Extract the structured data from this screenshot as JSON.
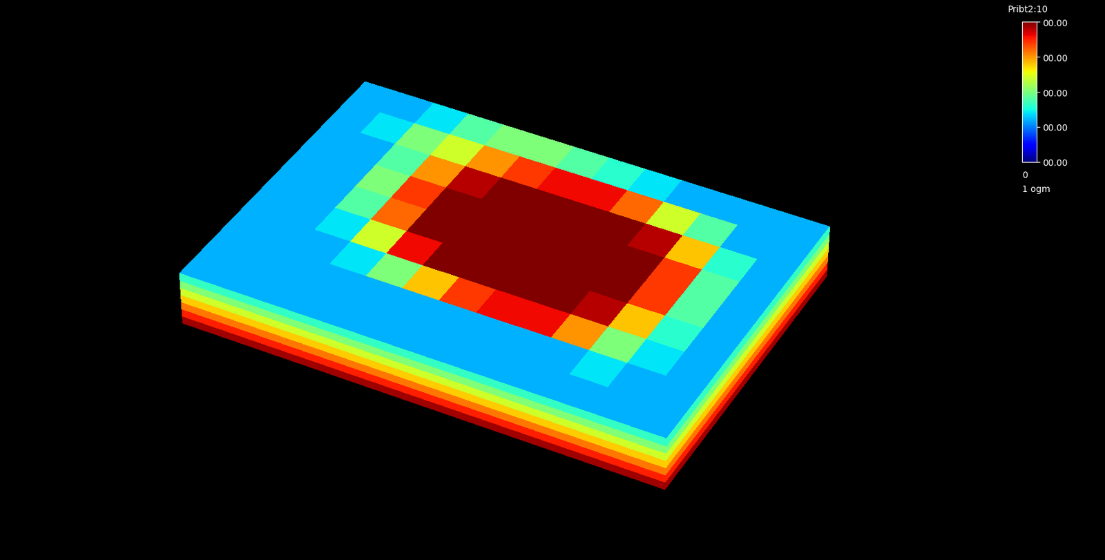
{
  "chart_data": {
    "type": "heatmap3d",
    "title": "Pribt2:10",
    "cells": [
      [
        0.3,
        0.3,
        0.3,
        0.3,
        0.3,
        0.3,
        0.3,
        0.3,
        0.3,
        0.3,
        0.3,
        0.3,
        0.3,
        0.3
      ],
      [
        0.3,
        0.3,
        0.3,
        0.3,
        0.3,
        0.3,
        0.3,
        0.3,
        0.3,
        0.3,
        0.35,
        0.3,
        0.3,
        0.3
      ],
      [
        0.3,
        0.3,
        0.3,
        0.35,
        0.5,
        0.7,
        0.85,
        0.9,
        0.9,
        0.75,
        0.5,
        0.35,
        0.3,
        0.3
      ],
      [
        0.3,
        0.3,
        0.35,
        0.6,
        0.9,
        1.0,
        1.0,
        1.0,
        1.0,
        0.95,
        0.7,
        0.4,
        0.3,
        0.3
      ],
      [
        0.3,
        0.3,
        0.45,
        0.8,
        1.0,
        1.0,
        1.0,
        1.0,
        1.0,
        1.0,
        0.85,
        0.45,
        0.3,
        0.3
      ],
      [
        0.3,
        0.3,
        0.5,
        0.85,
        1.0,
        1.0,
        1.0,
        1.0,
        1.0,
        1.0,
        0.85,
        0.45,
        0.3,
        0.3
      ],
      [
        0.3,
        0.3,
        0.45,
        0.75,
        0.95,
        1.0,
        1.0,
        1.0,
        1.0,
        0.95,
        0.7,
        0.4,
        0.3,
        0.3
      ],
      [
        0.3,
        0.35,
        0.5,
        0.6,
        0.75,
        0.85,
        0.9,
        0.9,
        0.8,
        0.6,
        0.45,
        0.3,
        0.3,
        0.3
      ],
      [
        0.3,
        0.3,
        0.35,
        0.45,
        0.5,
        0.5,
        0.45,
        0.4,
        0.35,
        0.3,
        0.3,
        0.3,
        0.3,
        0.3
      ],
      [
        0.3,
        0.3,
        0.3,
        0.3,
        0.3,
        0.3,
        0.3,
        0.3,
        0.3,
        0.3,
        0.3,
        0.3,
        0.3,
        0.3
      ]
    ],
    "colorbar_range": [
      0,
      1
    ],
    "colorbar_ticks": [
      {
        "value": 1,
        "label": "00.00"
      },
      {
        "value": 0.75,
        "label": "00.00"
      },
      {
        "value": 0.5,
        "label": "00.00"
      },
      {
        "value": 0.25,
        "label": "00.00"
      },
      {
        "value": 0,
        "label": "00.00"
      }
    ],
    "annotations": [
      "0",
      "1 ogm"
    ]
  }
}
